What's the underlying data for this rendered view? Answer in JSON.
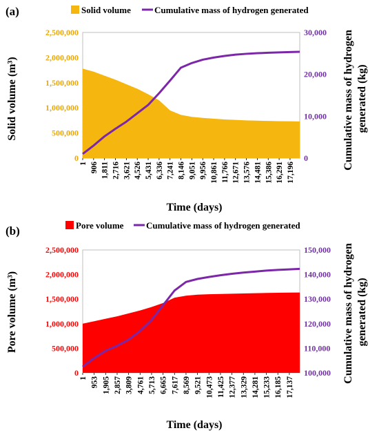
{
  "chart_data": [
    {
      "type": "area",
      "panel_label": "(a)",
      "legend": {
        "placement": "top",
        "entries": [
          "Solid volume",
          "Cumulative mass of hydrogen generated"
        ]
      },
      "xlabel": "Time (days)",
      "ylabel_left": "Solid volume (m³)",
      "ylabel_right": "Cumulative mass of hydrogen generated (kg)",
      "ylim_left": [
        0,
        2500000
      ],
      "ylim_right": [
        0,
        30000
      ],
      "yticks_left": [
        "0",
        "500,000",
        "1,000,000",
        "1,500,000",
        "2,000,000",
        "2,500,000"
      ],
      "yticks_right": [
        "0",
        "10,000",
        "20,000",
        "30,000"
      ],
      "xlim": [
        1,
        18000
      ],
      "xticks": [
        "1",
        "906",
        "1,811",
        "2,716",
        "3,621",
        "4,526",
        "5,431",
        "6,336",
        "7,241",
        "8,146",
        "9,051",
        "9,956",
        "10,861",
        "11,766",
        "12,671",
        "13,576",
        "14,481",
        "15,386",
        "16,291",
        "17,196"
      ],
      "colors": {
        "area": "#F5B70F",
        "line": "#7B27A8",
        "left_axis": "#E8A800",
        "right_axis": "#7030A0"
      },
      "series": [
        {
          "name": "Solid volume",
          "axis": "left",
          "x": [
            1,
            906,
            1811,
            2716,
            3621,
            4526,
            5431,
            6336,
            7241,
            8146,
            9051,
            9956,
            10861,
            11766,
            12671,
            13576,
            14481,
            15386,
            16291,
            17196,
            18000
          ],
          "values": [
            1780000,
            1720000,
            1640000,
            1560000,
            1470000,
            1380000,
            1270000,
            1150000,
            950000,
            860000,
            820000,
            800000,
            785000,
            770000,
            760000,
            750000,
            745000,
            740000,
            735000,
            733000,
            730000
          ]
        },
        {
          "name": "Cumulative mass of hydrogen generated",
          "axis": "right",
          "x": [
            1,
            906,
            1811,
            2716,
            3621,
            4526,
            5431,
            6336,
            7241,
            8146,
            9051,
            9956,
            10861,
            11766,
            12671,
            13576,
            14481,
            15386,
            16291,
            17196,
            18000
          ],
          "values": [
            1000,
            3000,
            5200,
            7000,
            8700,
            10700,
            12700,
            15500,
            18500,
            21600,
            22700,
            23500,
            24000,
            24400,
            24700,
            24900,
            25050,
            25150,
            25250,
            25320,
            25380
          ]
        }
      ]
    },
    {
      "type": "area",
      "panel_label": "(b)",
      "legend": {
        "placement": "top",
        "entries": [
          "Pore volume",
          "Cumulative mass of hydrogen generated"
        ]
      },
      "xlabel": "Time (days)",
      "ylabel_left": "Pore volume (m³)",
      "ylabel_right": "Cumulative mass of hydrogen generated (kg)",
      "ylim_left": [
        0,
        2500000
      ],
      "ylim_right": [
        100000,
        150000
      ],
      "yticks_left": [
        "0",
        "500,000",
        "1,000,000",
        "1,500,000",
        "2,000,000",
        "2,500,000"
      ],
      "yticks_right": [
        "100,000",
        "110,000",
        "120,000",
        "130,000",
        "140,000",
        "150,000"
      ],
      "xlim": [
        1,
        18000
      ],
      "xticks": [
        "1",
        "953",
        "1,905",
        "2,857",
        "3,809",
        "4,761",
        "5,713",
        "6,665",
        "7,617",
        "8,569",
        "9,521",
        "10,473",
        "11,425",
        "12,377",
        "13,329",
        "14,281",
        "15,233",
        "16,185",
        "17,137"
      ],
      "colors": {
        "area": "#FF0000",
        "line": "#7B27A8",
        "left_axis": "#FF0000",
        "right_axis": "#7030A0"
      },
      "series": [
        {
          "name": "Pore volume",
          "axis": "left",
          "x": [
            1,
            953,
            1905,
            2857,
            3809,
            4761,
            5713,
            6665,
            7617,
            8569,
            9521,
            10473,
            11425,
            12377,
            13329,
            14281,
            15233,
            16185,
            17137,
            18000
          ],
          "values": [
            1000000,
            1050000,
            1100000,
            1150000,
            1210000,
            1270000,
            1340000,
            1420000,
            1530000,
            1570000,
            1590000,
            1600000,
            1605000,
            1610000,
            1615000,
            1620000,
            1625000,
            1630000,
            1632000,
            1635000
          ]
        },
        {
          "name": "Cumulative mass of hydrogen generated",
          "axis": "right",
          "x": [
            1,
            953,
            1905,
            2857,
            3809,
            4761,
            5713,
            6665,
            7617,
            8569,
            9521,
            10473,
            11425,
            12377,
            13329,
            14281,
            15233,
            16185,
            17137,
            18000
          ],
          "values": [
            102500,
            106000,
            109000,
            111000,
            113500,
            117000,
            121500,
            127500,
            133500,
            137000,
            138200,
            139000,
            139700,
            140300,
            140800,
            141200,
            141600,
            141900,
            142100,
            142300
          ]
        }
      ]
    }
  ]
}
